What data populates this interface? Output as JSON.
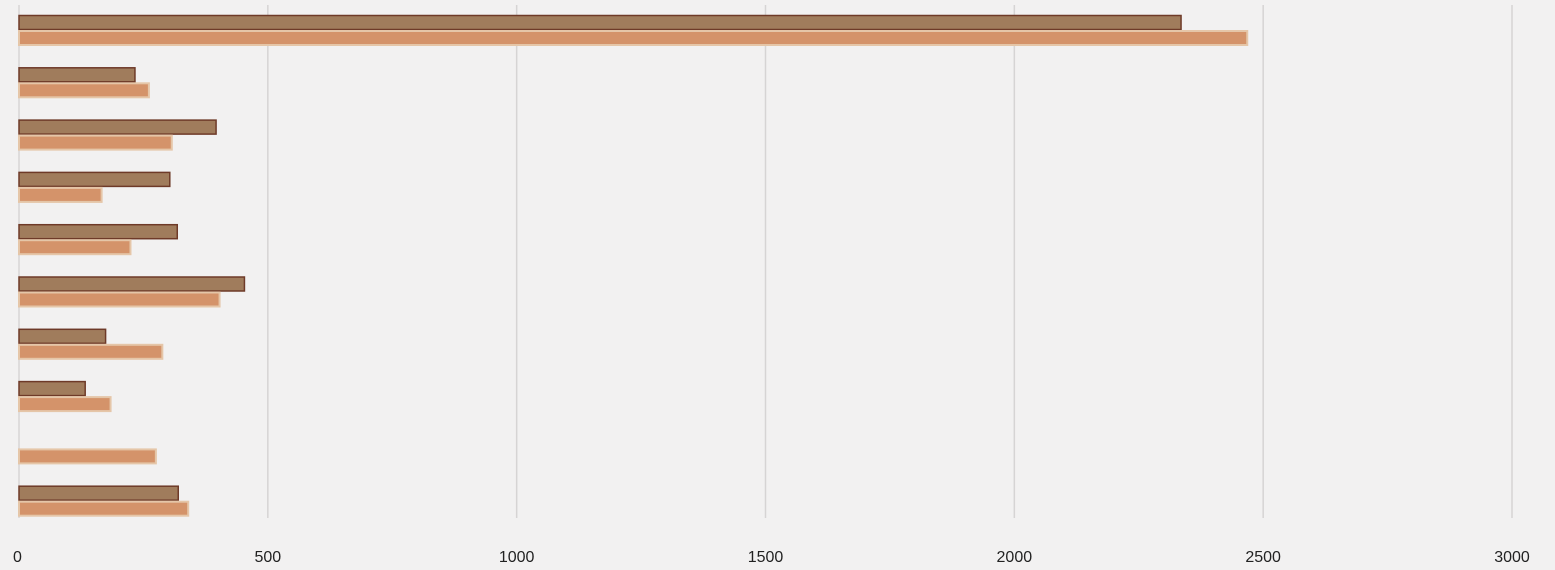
{
  "chart_data": {
    "type": "bar",
    "orientation": "horizontal",
    "title": "",
    "xlabel": "",
    "ylabel": "",
    "xlim": [
      0,
      3000
    ],
    "x_ticks": [
      0,
      500,
      1000,
      1500,
      2000,
      2500,
      3000
    ],
    "x_tick_labels": [
      "0",
      "500",
      "1000",
      "1500",
      "2000",
      "2500",
      "3000"
    ],
    "categories": [
      "",
      "",
      "",
      "",
      "",
      "",
      "",
      "",
      "",
      ""
    ],
    "grid": "vertical",
    "legend": "none",
    "series": [
      {
        "color": "#a07c5c",
        "border": "#6e3a28",
        "values": [
          2335,
          233,
          396,
          303,
          318,
          453,
          174,
          133,
          null,
          320
        ]
      },
      {
        "color": "#d4936a",
        "border": "#e5c6a8",
        "values": [
          2468,
          261,
          307,
          166,
          224,
          403,
          288,
          184,
          275,
          340
        ]
      }
    ]
  }
}
